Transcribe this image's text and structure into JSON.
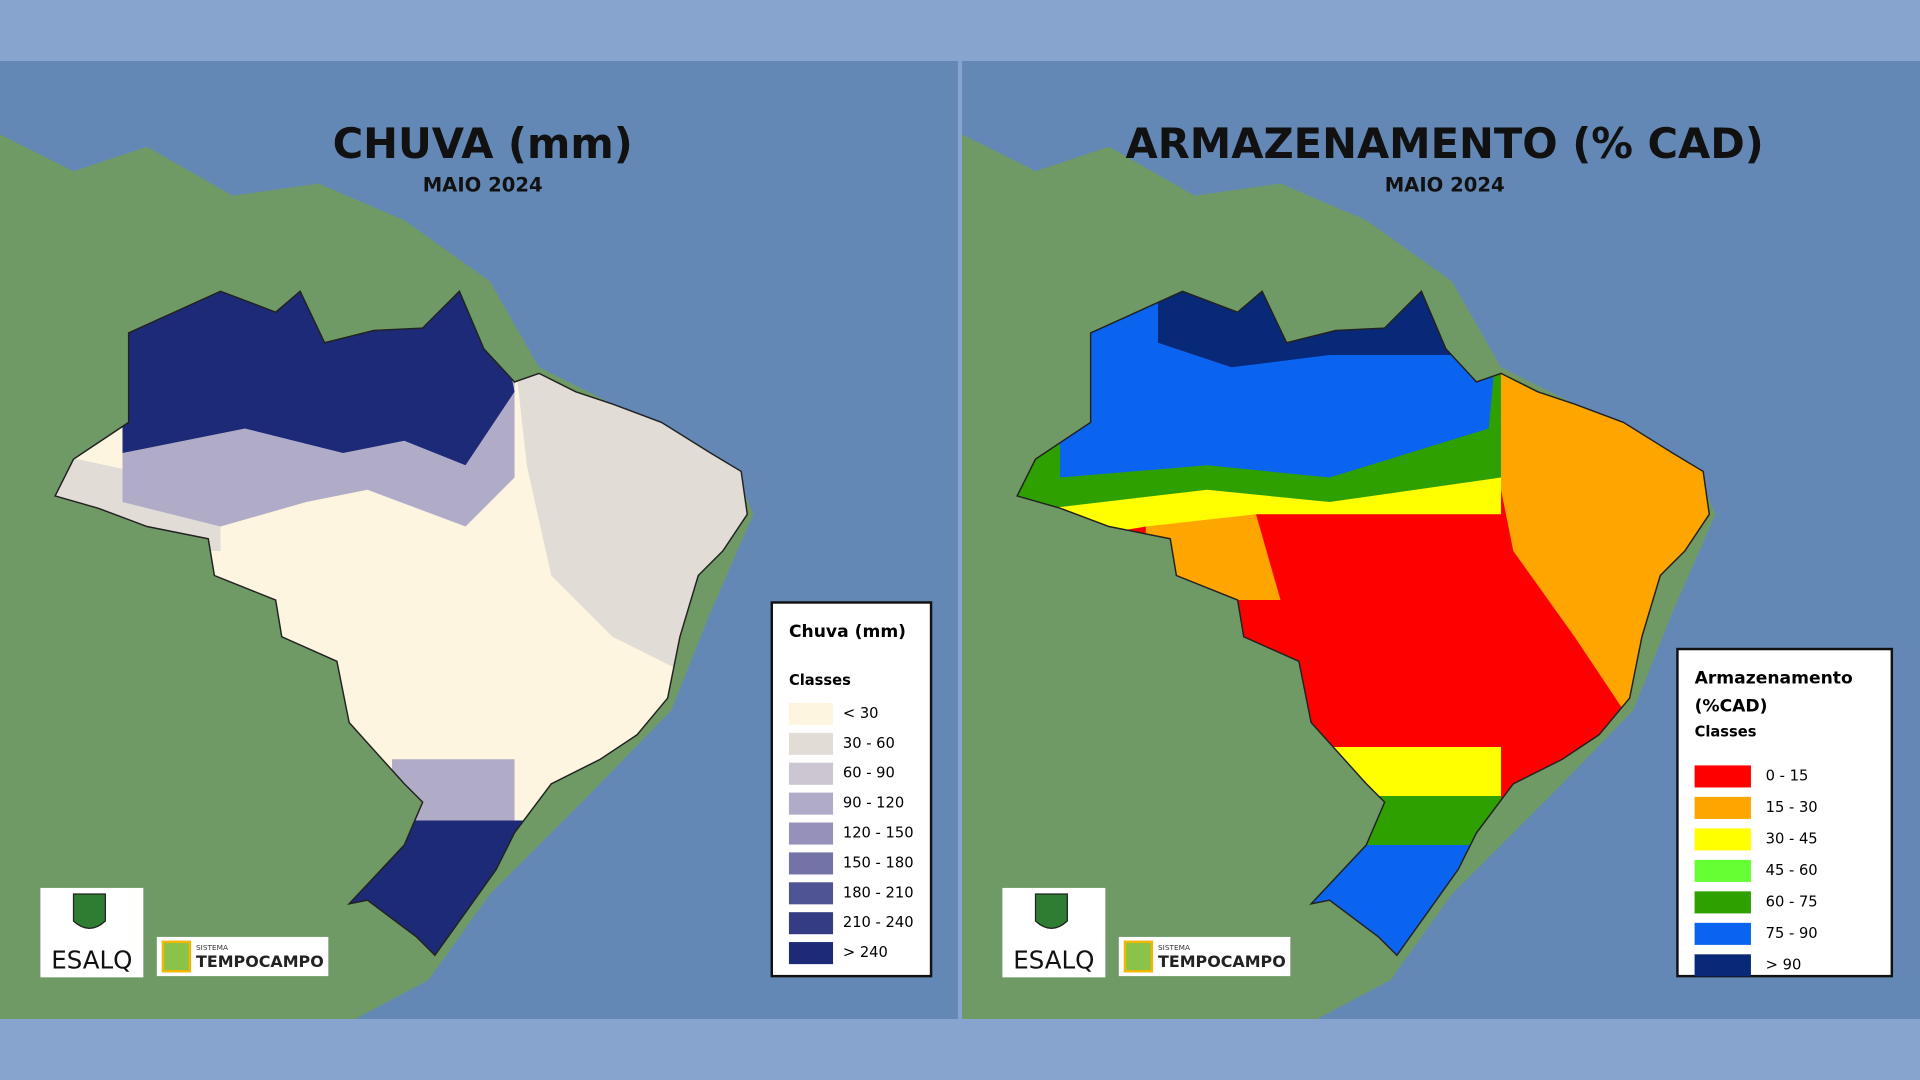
{
  "panels": [
    {
      "title": "CHUVA (mm)",
      "subtitle": "MAIO 2024",
      "legend": {
        "title_lines": [
          "Chuva (mm)"
        ],
        "classes_label": "Classes",
        "classes": [
          {
            "label": "< 30",
            "color": "#fdf5e0"
          },
          {
            "label": "30 - 60",
            "color": "#e2dcd6"
          },
          {
            "label": "60 - 90",
            "color": "#cbc6d2"
          },
          {
            "label": "90 - 120",
            "color": "#b0acc8"
          },
          {
            "label": "120 - 150",
            "color": "#9591bb"
          },
          {
            "label": "150 - 180",
            "color": "#7473a8"
          },
          {
            "label": "180 - 210",
            "color": "#4f5494"
          },
          {
            "label": "210 - 240",
            "color": "#343d83"
          },
          {
            "label": "> 240",
            "color": "#1c2a78"
          }
        ]
      }
    },
    {
      "title": "ARMAZENAMENTO (% CAD)",
      "subtitle": "MAIO 2024",
      "legend": {
        "title_lines": [
          "Armazenamento",
          "(%CAD)"
        ],
        "classes_label": "Classes",
        "classes": [
          {
            "label": "0 - 15",
            "color": "#ff0000"
          },
          {
            "label": "15 - 30",
            "color": "#ffa500"
          },
          {
            "label": "30 - 45",
            "color": "#ffff00"
          },
          {
            "label": "45 - 60",
            "color": "#66ff33"
          },
          {
            "label": "60 - 75",
            "color": "#2ea000"
          },
          {
            "label": "75 - 90",
            "color": "#0a64f0"
          },
          {
            "label": "> 90",
            "color": "#082878"
          }
        ]
      }
    }
  ],
  "logos": {
    "esalq": "ESALQ",
    "sistema": "SISTEMA",
    "tempocampo": "TEMPOCAMPO"
  }
}
